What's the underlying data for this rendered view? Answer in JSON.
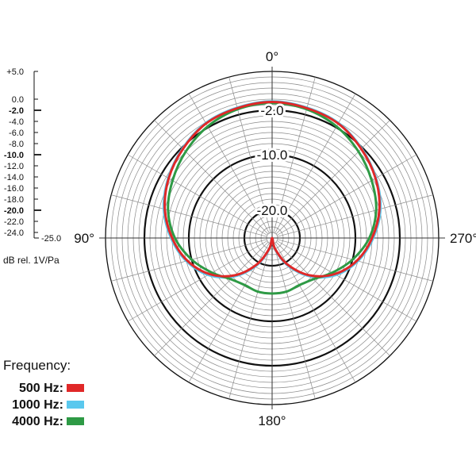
{
  "chart_data": {
    "type": "polar-line",
    "title": "",
    "radial_axis": {
      "range": [
        -25.0,
        5.0
      ],
      "unit_label": "dB rel. 1V/Pa",
      "ticks": [
        "+5.0",
        "0.0",
        "-2.0",
        "-4.0",
        "-6.0",
        "-8.0",
        "-10.0",
        "-12.0",
        "-14.0",
        "-16.0",
        "-18.0",
        "-20.0",
        "-22.0",
        "-24.0",
        "-25.0"
      ],
      "tick_values": [
        5,
        0,
        -2,
        -4,
        -6,
        -8,
        -10,
        -12,
        -14,
        -16,
        -18,
        -20,
        -22,
        -24,
        -25
      ],
      "major_ticks": [
        -2,
        -10,
        -20
      ],
      "ring_labels": [
        "-2.0",
        "-10.0",
        "-20.0"
      ],
      "ring_values": [
        -2,
        -10,
        -20
      ]
    },
    "angular_axis": {
      "labels": [
        "0°",
        "90°",
        "180°",
        "270°"
      ],
      "angles": [
        0,
        90,
        180,
        270
      ],
      "grid_step_degrees": 15
    },
    "legend": {
      "title": "Frequency:",
      "placement": "bottom-left"
    },
    "series": [
      {
        "name": "500 Hz:",
        "color": "#e02828",
        "angles": [
          0,
          15,
          30,
          45,
          60,
          75,
          90,
          105,
          120,
          135,
          150,
          165,
          180,
          195,
          210,
          225,
          240,
          255,
          270,
          285,
          300,
          315,
          330,
          345
        ],
        "values": [
          -0.5,
          -0.8,
          -1.2,
          -2.3,
          -3.5,
          -5.0,
          -7.0,
          -9.2,
          -12.0,
          -15.5,
          -19.5,
          -23.0,
          -25.0,
          -23.0,
          -19.5,
          -15.5,
          -12.0,
          -9.2,
          -7.0,
          -5.0,
          -3.5,
          -2.3,
          -1.2,
          -0.8
        ]
      },
      {
        "name": "1000 Hz:",
        "color": "#5ac8ee",
        "angles": [
          0,
          15,
          30,
          45,
          60,
          75,
          90,
          105,
          120,
          135,
          150,
          165,
          180,
          195,
          210,
          225,
          240,
          255,
          270,
          285,
          300,
          315,
          330,
          345
        ],
        "values": [
          -0.4,
          -0.7,
          -1.1,
          -2.2,
          -3.4,
          -4.8,
          -6.8,
          -9.0,
          -11.7,
          -15.2,
          -19.2,
          -22.8,
          -25.0,
          -22.8,
          -19.2,
          -15.2,
          -11.7,
          -9.0,
          -6.8,
          -4.8,
          -3.4,
          -2.2,
          -1.1,
          -0.7
        ]
      },
      {
        "name": "4000 Hz:",
        "color": "#2e9a45",
        "angles": [
          0,
          15,
          30,
          45,
          60,
          75,
          90,
          105,
          120,
          135,
          150,
          165,
          180,
          195,
          210,
          225,
          240,
          255,
          270,
          285,
          300,
          315,
          330,
          345
        ],
        "values": [
          -0.7,
          -1.0,
          -1.8,
          -3.0,
          -4.3,
          -5.6,
          -7.5,
          -10.0,
          -12.5,
          -14.5,
          -15.2,
          -15.0,
          -15.0,
          -15.0,
          -15.2,
          -14.5,
          -12.5,
          -10.0,
          -7.5,
          -5.6,
          -4.3,
          -3.0,
          -1.8,
          -1.0
        ]
      }
    ]
  }
}
